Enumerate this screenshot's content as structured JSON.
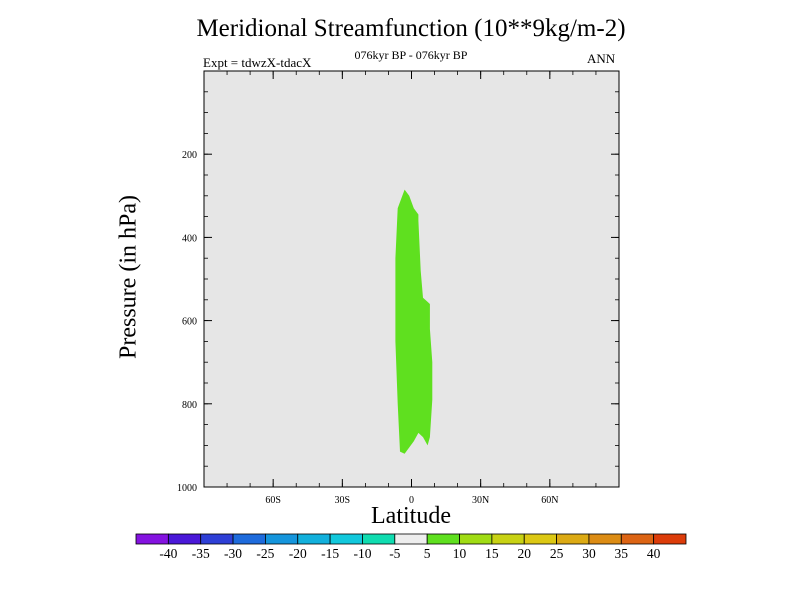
{
  "chart_data": {
    "type": "contour",
    "title": "Meridional Streamfunction (10**9kg/m-2)",
    "subtitle": "076kyr BP - 076kyr BP",
    "experiment": "Expt = tdwzX-tdacX",
    "season": "ANN",
    "xlabel": "Latitude",
    "ylabel": "Pressure (in hPa)",
    "xlim": [
      -90,
      90
    ],
    "ylim": [
      1000,
      0
    ],
    "x_ticks": [
      {
        "value": -60,
        "label": "60S"
      },
      {
        "value": -30,
        "label": "30S"
      },
      {
        "value": 0,
        "label": "0"
      },
      {
        "value": 30,
        "label": "30N"
      },
      {
        "value": 60,
        "label": "60N"
      }
    ],
    "y_ticks": [
      {
        "value": 200,
        "label": "200"
      },
      {
        "value": 400,
        "label": "400"
      },
      {
        "value": 600,
        "label": "600"
      },
      {
        "value": 800,
        "label": "800"
      },
      {
        "value": 1000,
        "label": "1000"
      }
    ],
    "background_color": "#e6e6e6",
    "filled_regions": [
      {
        "level": "5 to 10",
        "color": "#5fe01f",
        "outline": [
          [
            -3,
            285
          ],
          [
            -1,
            300
          ],
          [
            1,
            330
          ],
          [
            3,
            345
          ],
          [
            3,
            360
          ],
          [
            4,
            480
          ],
          [
            5,
            545
          ],
          [
            7,
            555
          ],
          [
            8,
            560
          ],
          [
            8,
            620
          ],
          [
            9,
            700
          ],
          [
            9,
            790
          ],
          [
            8,
            880
          ],
          [
            7,
            900
          ],
          [
            5,
            880
          ],
          [
            3,
            870
          ],
          [
            1,
            890
          ],
          [
            -3,
            920
          ],
          [
            -5,
            915
          ],
          [
            -6,
            800
          ],
          [
            -7,
            650
          ],
          [
            -7,
            450
          ],
          [
            -6,
            330
          ]
        ]
      }
    ],
    "colorbar": {
      "colors": [
        "#8413e0",
        "#4a18d8",
        "#2e3fd6",
        "#1e6bdc",
        "#1595dc",
        "#12b0dc",
        "#12c8dc",
        "#10dcb0",
        "#eeeeee",
        "#5fe01f",
        "#a0dc14",
        "#c8d214",
        "#dcc814",
        "#dcaa14",
        "#dc8c14",
        "#dc6414",
        "#dc3c0a"
      ],
      "labels": [
        "-40",
        "-35",
        "-30",
        "-25",
        "-20",
        "-15",
        "-10",
        "-5",
        "5",
        "10",
        "15",
        "20",
        "25",
        "30",
        "35",
        "40"
      ]
    }
  }
}
